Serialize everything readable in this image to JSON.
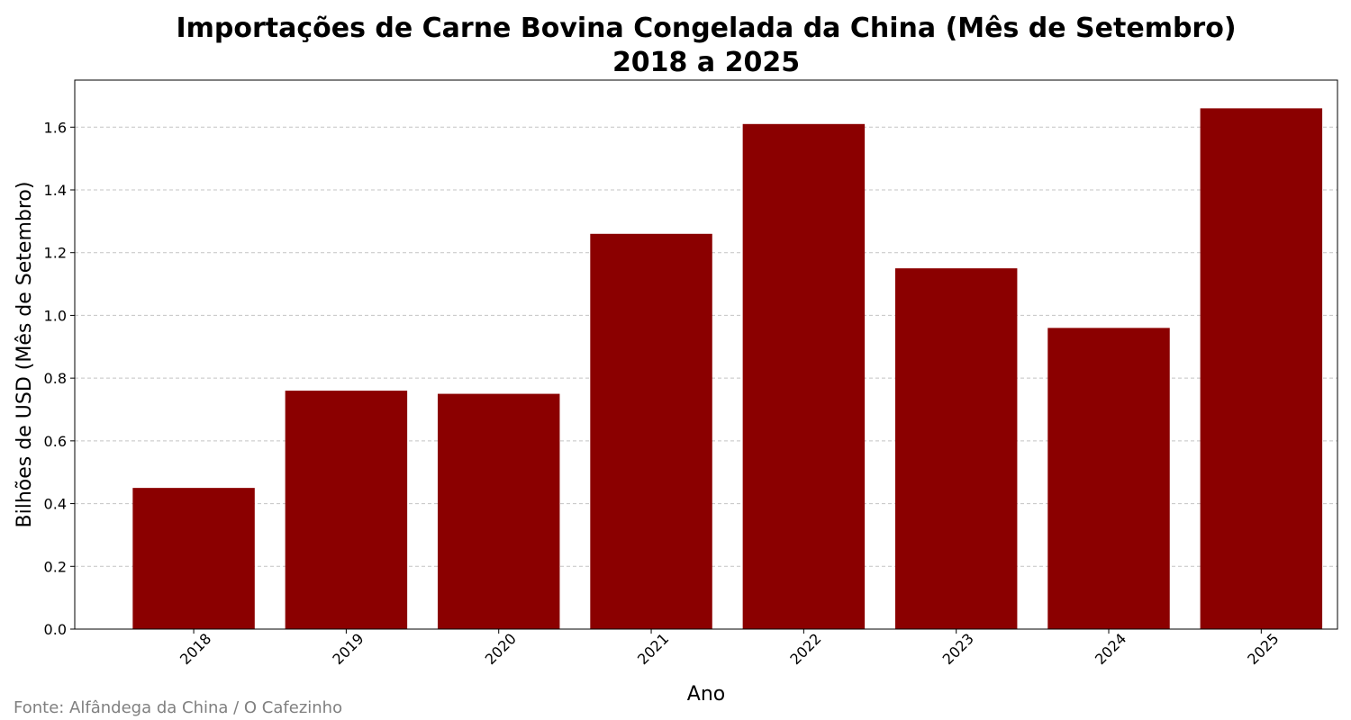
{
  "chart_data": {
    "type": "bar",
    "title": "Importações de Carne Bovina Congelada da China (Mês de Setembro)",
    "subtitle": "2018 a 2025",
    "xlabel": "Ano",
    "ylabel": "Bilhões de USD (Mês de Setembro)",
    "categories": [
      "2018",
      "2019",
      "2020",
      "2021",
      "2022",
      "2023",
      "2024",
      "2025"
    ],
    "values": [
      0.45,
      0.76,
      0.75,
      1.26,
      1.61,
      1.15,
      0.96,
      1.66
    ],
    "ylim": [
      0,
      1.75
    ],
    "yticks": [
      0.0,
      0.2,
      0.4,
      0.6,
      0.8,
      1.0,
      1.2,
      1.4,
      1.6
    ],
    "ytick_labels": [
      "0.0",
      "0.2",
      "0.4",
      "0.6",
      "0.8",
      "1.0",
      "1.2",
      "1.4",
      "1.6"
    ],
    "grid": "y dashed",
    "bar_color": "#8b0000",
    "source": "Fonte: Alfândega da China / O Cafezinho"
  }
}
